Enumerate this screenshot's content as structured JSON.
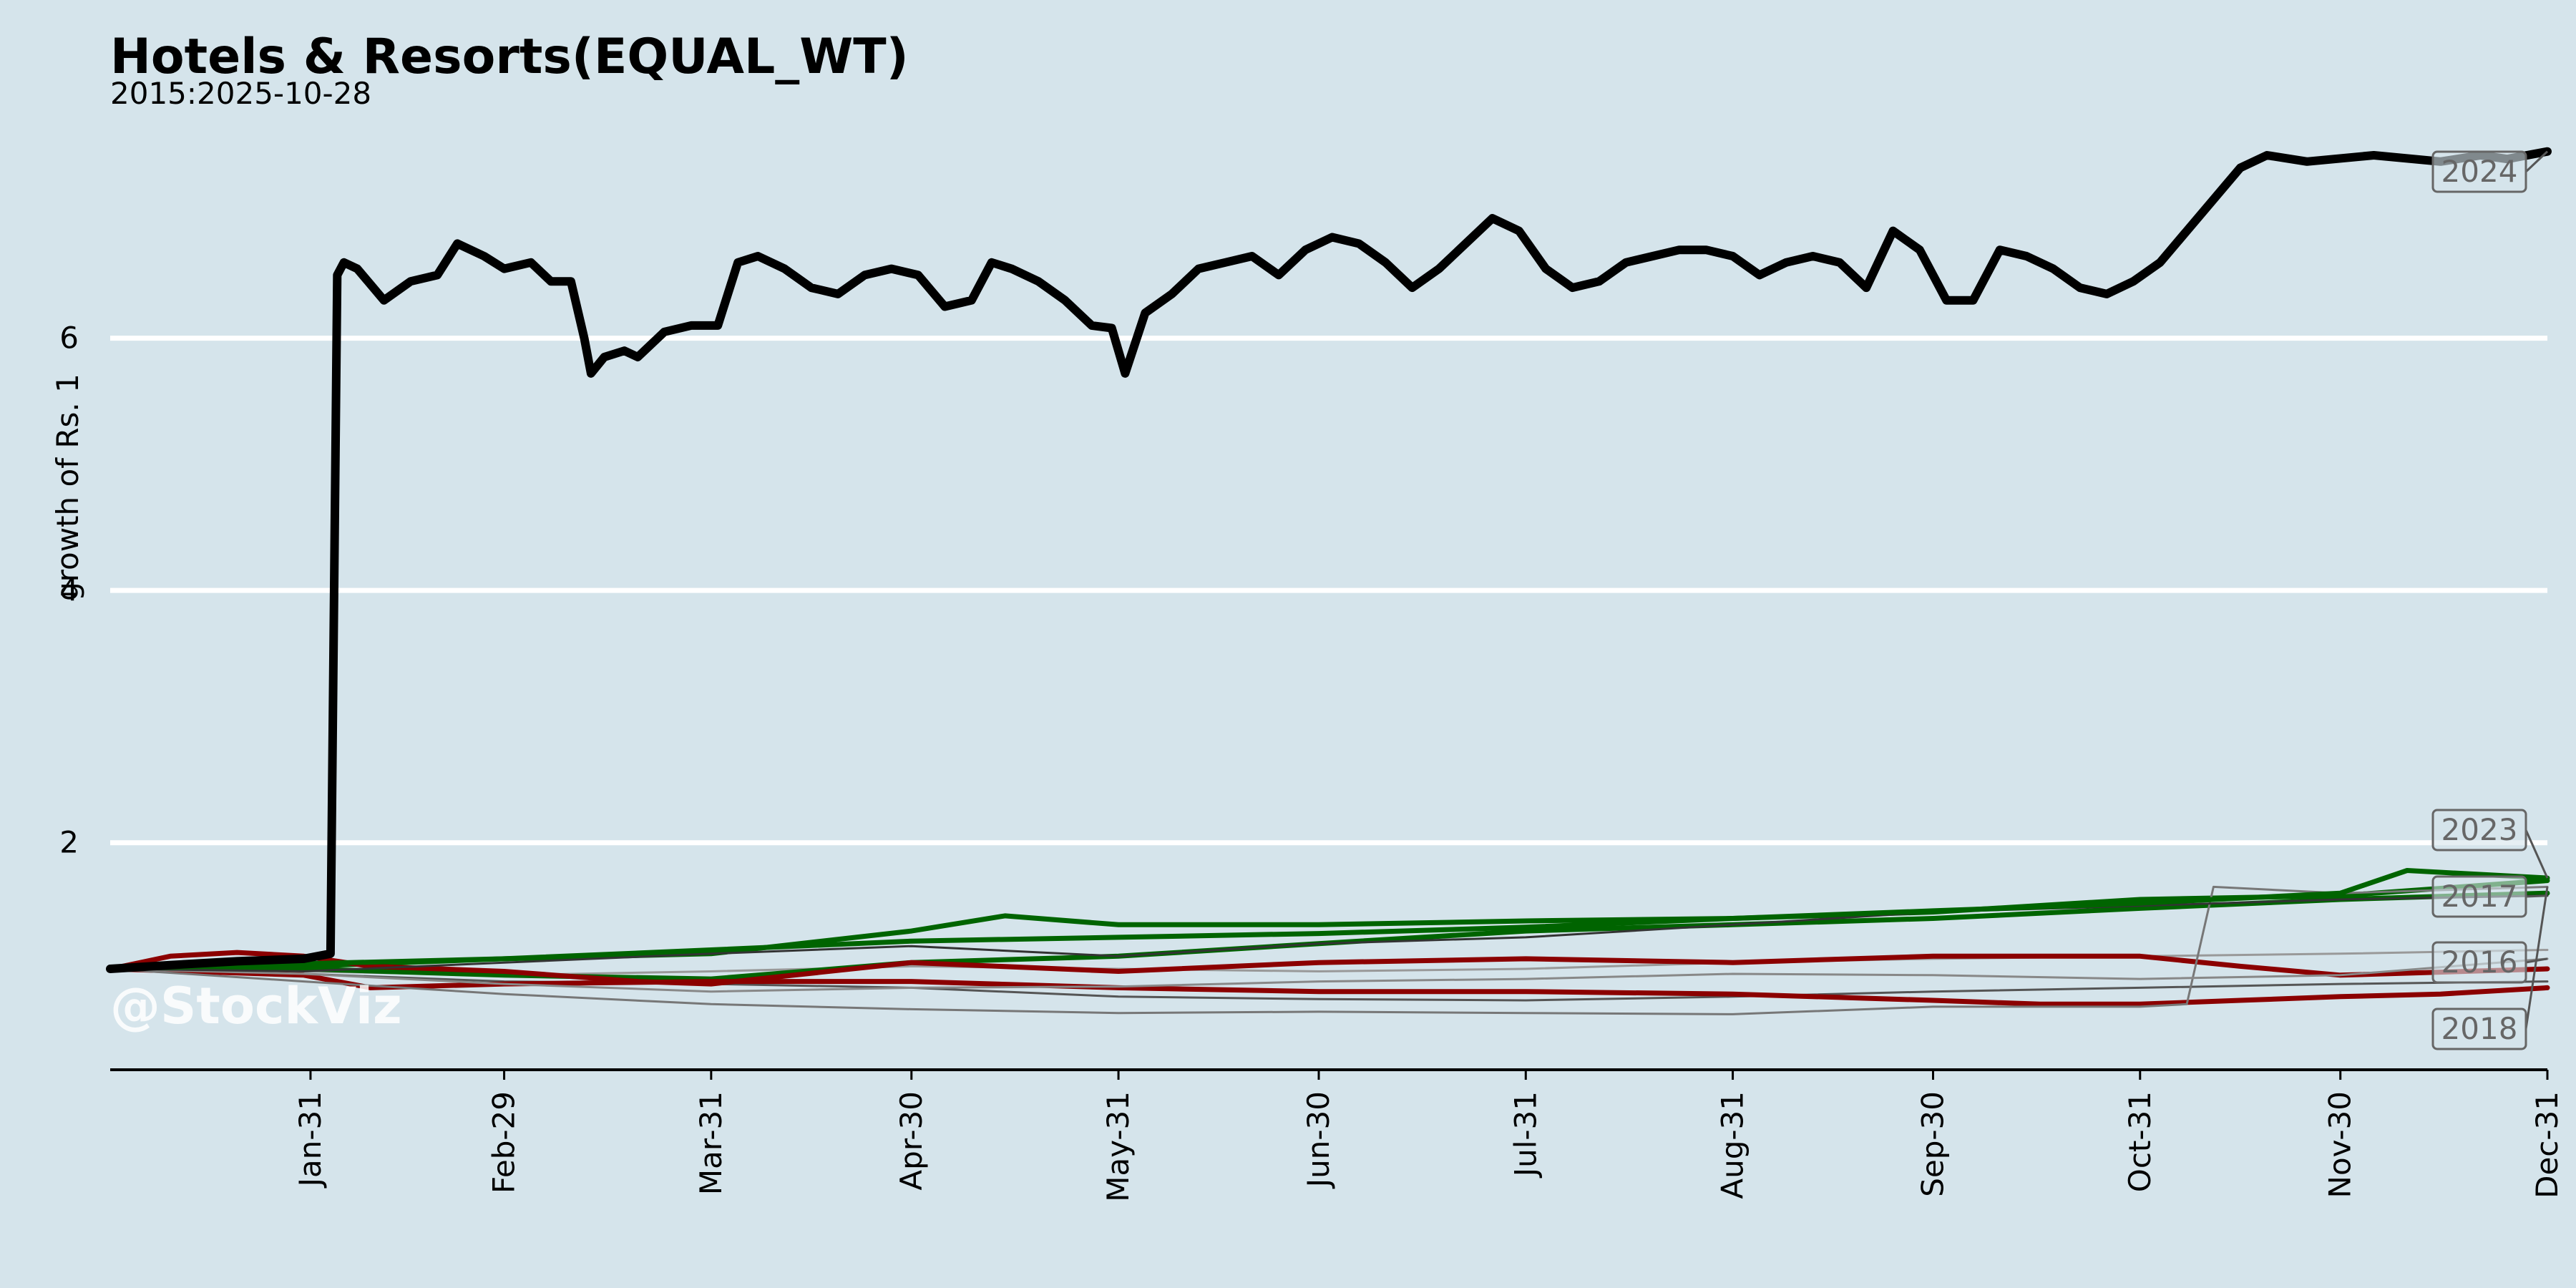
{
  "chart_data": {
    "type": "line",
    "title": "Hotels & Resorts(EQUAL_WT)",
    "subtitle": "2015:2025-10-28",
    "xlabel": "",
    "ylabel": "growth of Rs. 1",
    "watermark": "@StockViz",
    "x_ticks": [
      "Jan-31",
      "Feb-29",
      "Mar-31",
      "Apr-30",
      "May-31",
      "Jun-30",
      "Jul-31",
      "Aug-31",
      "Sep-30",
      "Oct-31",
      "Nov-30",
      "Dec-31"
    ],
    "x_tick_days": [
      31,
      60,
      91,
      121,
      152,
      182,
      213,
      244,
      274,
      305,
      335,
      366
    ],
    "xlim": [
      1,
      366
    ],
    "y_ticks": [
      2,
      4,
      6
    ],
    "ylim": [
      0.2,
      8.0
    ],
    "grid": "horizontal",
    "series": [
      {
        "name": "2024",
        "color": "#000000",
        "width": 12,
        "label": true,
        "points": [
          [
            1,
            1.0
          ],
          [
            10,
            1.03
          ],
          [
            20,
            1.06
          ],
          [
            30,
            1.08
          ],
          [
            34,
            1.12
          ],
          [
            35,
            6.5
          ],
          [
            36,
            6.6
          ],
          [
            38,
            6.55
          ],
          [
            42,
            6.3
          ],
          [
            46,
            6.45
          ],
          [
            50,
            6.5
          ],
          [
            53,
            6.75
          ],
          [
            57,
            6.65
          ],
          [
            60,
            6.55
          ],
          [
            64,
            6.6
          ],
          [
            67,
            6.45
          ],
          [
            70,
            6.45
          ],
          [
            72,
            6.0
          ],
          [
            73,
            5.72
          ],
          [
            75,
            5.85
          ],
          [
            78,
            5.9
          ],
          [
            80,
            5.85
          ],
          [
            84,
            6.05
          ],
          [
            88,
            6.1
          ],
          [
            92,
            6.1
          ],
          [
            95,
            6.6
          ],
          [
            98,
            6.65
          ],
          [
            102,
            6.55
          ],
          [
            106,
            6.4
          ],
          [
            110,
            6.35
          ],
          [
            114,
            6.5
          ],
          [
            118,
            6.55
          ],
          [
            122,
            6.5
          ],
          [
            126,
            6.25
          ],
          [
            130,
            6.3
          ],
          [
            133,
            6.6
          ],
          [
            136,
            6.55
          ],
          [
            140,
            6.45
          ],
          [
            144,
            6.3
          ],
          [
            148,
            6.1
          ],
          [
            151,
            6.08
          ],
          [
            153,
            5.72
          ],
          [
            156,
            6.2
          ],
          [
            160,
            6.35
          ],
          [
            164,
            6.55
          ],
          [
            168,
            6.6
          ],
          [
            172,
            6.65
          ],
          [
            176,
            6.5
          ],
          [
            180,
            6.7
          ],
          [
            184,
            6.8
          ],
          [
            188,
            6.75
          ],
          [
            192,
            6.6
          ],
          [
            196,
            6.4
          ],
          [
            200,
            6.55
          ],
          [
            204,
            6.75
          ],
          [
            208,
            6.95
          ],
          [
            212,
            6.85
          ],
          [
            216,
            6.55
          ],
          [
            220,
            6.4
          ],
          [
            224,
            6.45
          ],
          [
            228,
            6.6
          ],
          [
            232,
            6.65
          ],
          [
            236,
            6.7
          ],
          [
            240,
            6.7
          ],
          [
            244,
            6.65
          ],
          [
            248,
            6.5
          ],
          [
            252,
            6.6
          ],
          [
            256,
            6.65
          ],
          [
            260,
            6.6
          ],
          [
            264,
            6.4
          ],
          [
            268,
            6.85
          ],
          [
            272,
            6.7
          ],
          [
            276,
            6.3
          ],
          [
            280,
            6.3
          ],
          [
            284,
            6.7
          ],
          [
            288,
            6.65
          ],
          [
            292,
            6.55
          ],
          [
            296,
            6.4
          ],
          [
            300,
            6.35
          ],
          [
            304,
            6.45
          ],
          [
            308,
            6.6
          ],
          [
            312,
            6.85
          ],
          [
            316,
            7.1
          ],
          [
            320,
            7.35
          ],
          [
            324,
            7.45
          ],
          [
            330,
            7.4
          ],
          [
            340,
            7.45
          ],
          [
            350,
            7.4
          ],
          [
            356,
            7.45
          ],
          [
            360,
            7.42
          ],
          [
            366,
            7.48
          ]
        ]
      },
      {
        "name": "2023",
        "color": "#006400",
        "width": 7,
        "label": true,
        "points": [
          [
            1,
            1.0
          ],
          [
            30,
            1.04
          ],
          [
            60,
            1.08
          ],
          [
            91,
            1.15
          ],
          [
            121,
            1.22
          ],
          [
            152,
            1.25
          ],
          [
            182,
            1.28
          ],
          [
            213,
            1.33
          ],
          [
            244,
            1.4
          ],
          [
            274,
            1.46
          ],
          [
            305,
            1.52
          ],
          [
            335,
            1.6
          ],
          [
            345,
            1.78
          ],
          [
            366,
            1.72
          ]
        ]
      },
      {
        "name": "2017",
        "color": "#333333",
        "width": 3,
        "label": true,
        "points": [
          [
            1,
            1.0
          ],
          [
            30,
            0.98
          ],
          [
            60,
            1.05
          ],
          [
            91,
            1.12
          ],
          [
            121,
            1.18
          ],
          [
            152,
            1.1
          ],
          [
            182,
            1.2
          ],
          [
            213,
            1.25
          ],
          [
            244,
            1.35
          ],
          [
            274,
            1.45
          ],
          [
            305,
            1.5
          ],
          [
            335,
            1.55
          ],
          [
            366,
            1.58
          ]
        ]
      },
      {
        "name": "2016",
        "color": "#888888",
        "width": 3,
        "label": true,
        "points": [
          [
            1,
            1.0
          ],
          [
            30,
            0.96
          ],
          [
            60,
            0.88
          ],
          [
            91,
            0.82
          ],
          [
            121,
            0.85
          ],
          [
            152,
            0.86
          ],
          [
            182,
            0.9
          ],
          [
            213,
            0.92
          ],
          [
            244,
            0.96
          ],
          [
            274,
            0.95
          ],
          [
            305,
            0.92
          ],
          [
            335,
            0.95
          ],
          [
            366,
            1.08
          ]
        ]
      },
      {
        "name": "2018",
        "color": "#777777",
        "width": 3,
        "label": true,
        "points": [
          [
            1,
            1.0
          ],
          [
            30,
            0.9
          ],
          [
            60,
            0.8
          ],
          [
            91,
            0.72
          ],
          [
            121,
            0.68
          ],
          [
            152,
            0.65
          ],
          [
            182,
            0.66
          ],
          [
            213,
            0.65
          ],
          [
            244,
            0.64
          ],
          [
            274,
            0.7
          ],
          [
            305,
            0.7
          ],
          [
            312,
            0.72
          ],
          [
            316,
            1.65
          ],
          [
            335,
            1.6
          ],
          [
            366,
            1.65
          ]
        ]
      },
      {
        "name": "",
        "color": "#8b0000",
        "width": 7,
        "label": false,
        "points": [
          [
            1,
            1.0
          ],
          [
            10,
            1.1
          ],
          [
            20,
            1.13
          ],
          [
            30,
            1.1
          ],
          [
            40,
            1.02
          ],
          [
            60,
            0.98
          ],
          [
            80,
            0.9
          ],
          [
            91,
            0.88
          ],
          [
            121,
            1.05
          ],
          [
            152,
            0.98
          ],
          [
            182,
            1.05
          ],
          [
            213,
            1.08
          ],
          [
            244,
            1.05
          ],
          [
            274,
            1.1
          ],
          [
            305,
            1.1
          ],
          [
            320,
            1.02
          ],
          [
            335,
            0.95
          ],
          [
            366,
            1.0
          ]
        ]
      },
      {
        "name": "",
        "color": "#8b0000",
        "width": 7,
        "label": false,
        "points": [
          [
            1,
            1.0
          ],
          [
            30,
            0.95
          ],
          [
            40,
            0.85
          ],
          [
            60,
            0.88
          ],
          [
            91,
            0.9
          ],
          [
            121,
            0.9
          ],
          [
            152,
            0.85
          ],
          [
            182,
            0.82
          ],
          [
            213,
            0.82
          ],
          [
            244,
            0.8
          ],
          [
            274,
            0.75
          ],
          [
            290,
            0.72
          ],
          [
            305,
            0.72
          ],
          [
            320,
            0.75
          ],
          [
            335,
            0.78
          ],
          [
            350,
            0.8
          ],
          [
            366,
            0.85
          ]
        ]
      },
      {
        "name": "",
        "color": "#006400",
        "width": 7,
        "label": false,
        "points": [
          [
            1,
            1.0
          ],
          [
            30,
            1.0
          ],
          [
            60,
            0.95
          ],
          [
            91,
            0.92
          ],
          [
            121,
            1.05
          ],
          [
            152,
            1.1
          ],
          [
            182,
            1.2
          ],
          [
            213,
            1.3
          ],
          [
            244,
            1.35
          ],
          [
            274,
            1.4
          ],
          [
            305,
            1.48
          ],
          [
            335,
            1.55
          ],
          [
            366,
            1.6
          ]
        ]
      },
      {
        "name": "",
        "color": "#006400",
        "width": 7,
        "label": false,
        "points": [
          [
            1,
            1.0
          ],
          [
            30,
            1.02
          ],
          [
            60,
            1.08
          ],
          [
            91,
            1.12
          ],
          [
            121,
            1.3
          ],
          [
            135,
            1.42
          ],
          [
            152,
            1.35
          ],
          [
            182,
            1.35
          ],
          [
            213,
            1.38
          ],
          [
            244,
            1.4
          ],
          [
            274,
            1.45
          ],
          [
            305,
            1.55
          ],
          [
            335,
            1.58
          ],
          [
            366,
            1.7
          ]
        ]
      },
      {
        "name": "",
        "color": "#555555",
        "width": 3,
        "label": false,
        "points": [
          [
            1,
            1.0
          ],
          [
            30,
            0.96
          ],
          [
            60,
            0.9
          ],
          [
            91,
            0.88
          ],
          [
            121,
            0.85
          ],
          [
            152,
            0.78
          ],
          [
            182,
            0.76
          ],
          [
            213,
            0.75
          ],
          [
            244,
            0.78
          ],
          [
            274,
            0.82
          ],
          [
            305,
            0.85
          ],
          [
            335,
            0.88
          ],
          [
            366,
            0.9
          ]
        ]
      },
      {
        "name": "",
        "color": "#999999",
        "width": 3,
        "label": false,
        "points": [
          [
            1,
            1.0
          ],
          [
            30,
            0.98
          ],
          [
            60,
            0.95
          ],
          [
            91,
            0.98
          ],
          [
            121,
            1.02
          ],
          [
            152,
            1.0
          ],
          [
            182,
            0.98
          ],
          [
            213,
            1.0
          ],
          [
            244,
            1.05
          ],
          [
            274,
            1.08
          ],
          [
            305,
            1.1
          ],
          [
            335,
            1.12
          ],
          [
            366,
            1.15
          ]
        ]
      }
    ]
  }
}
